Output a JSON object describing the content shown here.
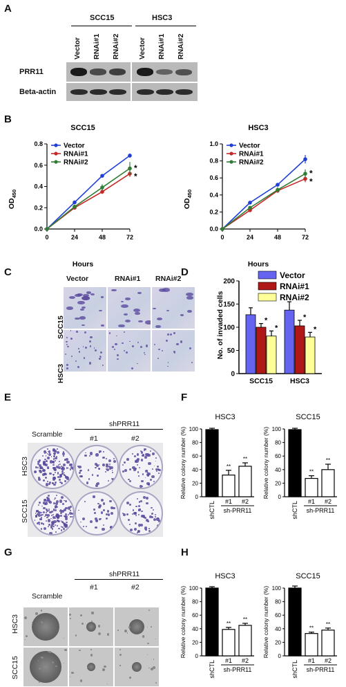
{
  "panels": {
    "A": "A",
    "B": "B",
    "C": "C",
    "D": "D",
    "E": "E",
    "F": "F",
    "G": "G",
    "H": "H"
  },
  "panelA": {
    "group_labels": [
      "SCC15",
      "HSC3"
    ],
    "lanes": [
      "Vector",
      "RNAi#1",
      "RNAi#2",
      "Vector",
      "RNAi#1",
      "RNAi#2"
    ],
    "row_labels": [
      "PRR11",
      "Beta-actin"
    ],
    "prr11_intensity": [
      0.95,
      0.55,
      0.65,
      0.95,
      0.35,
      0.5
    ],
    "actin_intensity": [
      0.8,
      0.8,
      0.8,
      0.8,
      0.8,
      0.8
    ]
  },
  "panelC": {
    "columns": [
      "Vector",
      "RNAi#1",
      "RNAi#2"
    ],
    "rows": [
      "SCC15",
      "HSC3"
    ],
    "cell_density": [
      [
        18,
        12,
        10
      ],
      [
        30,
        20,
        16
      ]
    ]
  },
  "panelE": {
    "scramble": "Scramble",
    "shPRR11": "shPRR11",
    "sub": [
      "#1",
      "#2"
    ],
    "rows": [
      "HSC3",
      "SCC15"
    ],
    "colony_density": [
      [
        1.0,
        0.35,
        0.45
      ],
      [
        1.0,
        0.25,
        0.4
      ]
    ]
  },
  "panelG": {
    "scramble": "Scramble",
    "shPRR11": "shPRR11",
    "sub": [
      "#1",
      "#2"
    ],
    "rows": [
      "HSC3",
      "SCC15"
    ]
  },
  "colors": {
    "vector_line": "#1f3fd6",
    "rnai1_line": "#c62828",
    "rnai2_line": "#2e7d32",
    "vector_bar": "#6464f0",
    "rnai1_bar": "#b01818",
    "rnai2_bar": "#ffff9a",
    "crystal_violet": "#5b4a9e"
  },
  "chart_data": [
    {
      "id": "B-left",
      "type": "line",
      "title": "SCC15",
      "xlabel": "Hours",
      "ylabel": "OD450",
      "x": [
        0,
        24,
        48,
        72
      ],
      "xlim": [
        0,
        72
      ],
      "ylim": [
        0,
        0.8
      ],
      "yticks": [
        "0.0",
        "0.2",
        "0.4",
        "0.6",
        "0.8"
      ],
      "xticks": [
        "0",
        "24",
        "48",
        "72"
      ],
      "series": [
        {
          "name": "Vector",
          "values": [
            0.0,
            0.25,
            0.5,
            0.69
          ],
          "err": [
            0,
            0.01,
            0.01,
            0.02
          ]
        },
        {
          "name": "RNAi#1",
          "values": [
            0.0,
            0.2,
            0.35,
            0.52
          ],
          "err": [
            0,
            0.01,
            0.02,
            0.03
          ]
        },
        {
          "name": "RNAi#2",
          "values": [
            0.0,
            0.21,
            0.39,
            0.57
          ],
          "err": [
            0,
            0.01,
            0.03,
            0.06
          ]
        }
      ],
      "annotations": [
        "*",
        "*"
      ]
    },
    {
      "id": "B-right",
      "type": "line",
      "title": "HSC3",
      "xlabel": "Hours",
      "ylabel": "OD450",
      "x": [
        0,
        24,
        48,
        72
      ],
      "xlim": [
        0,
        72
      ],
      "ylim": [
        0,
        1.0
      ],
      "yticks": [
        "0.0",
        "0.2",
        "0.4",
        "0.6",
        "0.8",
        "1.0"
      ],
      "xticks": [
        "0",
        "24",
        "48",
        "72"
      ],
      "series": [
        {
          "name": "Vector",
          "values": [
            0.0,
            0.31,
            0.52,
            0.82
          ],
          "err": [
            0,
            0.01,
            0.02,
            0.05
          ]
        },
        {
          "name": "RNAi#1",
          "values": [
            0.0,
            0.22,
            0.45,
            0.59
          ],
          "err": [
            0,
            0.01,
            0.02,
            0.04
          ]
        },
        {
          "name": "RNAi#2",
          "values": [
            0.0,
            0.25,
            0.46,
            0.65
          ],
          "err": [
            0,
            0.01,
            0.03,
            0.05
          ]
        }
      ],
      "annotations": [
        "*",
        "*"
      ]
    },
    {
      "id": "D",
      "type": "bar",
      "ylabel": "No. of invaded cells",
      "categories": [
        "SCC15",
        "HSC3"
      ],
      "ylim": [
        0,
        200
      ],
      "yticks": [
        "0",
        "50",
        "100",
        "150",
        "200"
      ],
      "series": [
        {
          "name": "Vector",
          "values": [
            127,
            137
          ],
          "err": [
            15,
            18
          ]
        },
        {
          "name": "RNAi#1",
          "values": [
            100,
            103
          ],
          "err": [
            8,
            12
          ]
        },
        {
          "name": "RNAi#2",
          "values": [
            81,
            79
          ],
          "err": [
            11,
            10
          ]
        }
      ],
      "annotations": [
        "*",
        "*",
        "*",
        "*"
      ]
    },
    {
      "id": "F-left",
      "type": "bar",
      "title": "HSC3",
      "ylabel": "Relative colony number (%)",
      "categories": [
        "shCTL",
        "#1",
        "#2"
      ],
      "group_label": "sh-PRR11",
      "ylim": [
        0,
        100
      ],
      "yticks": [
        "0",
        "20",
        "40",
        "60",
        "80",
        "100"
      ],
      "series": [
        {
          "values": [
            99,
            32,
            45
          ],
          "err": [
            2,
            7,
            5
          ]
        }
      ],
      "annotations": [
        "**",
        "**"
      ]
    },
    {
      "id": "F-right",
      "type": "bar",
      "title": "SCC15",
      "ylabel": "Relative colony number (%)",
      "categories": [
        "shCTL",
        "#1",
        "#2"
      ],
      "group_label": "sh-PRR11",
      "ylim": [
        0,
        100
      ],
      "yticks": [
        "0",
        "20",
        "40",
        "60",
        "80",
        "100"
      ],
      "series": [
        {
          "values": [
            99,
            27,
            40
          ],
          "err": [
            2,
            4,
            8
          ]
        }
      ],
      "annotations": [
        "**",
        "**"
      ]
    },
    {
      "id": "H-left",
      "type": "bar",
      "title": "HSC3",
      "ylabel": "Relative colony number (%)",
      "categories": [
        "shCTL",
        "#1",
        "#2"
      ],
      "group_label": "sh-PRR11",
      "ylim": [
        0,
        100
      ],
      "yticks": [
        "0",
        "20",
        "40",
        "60",
        "80",
        "100"
      ],
      "series": [
        {
          "values": [
            100,
            39,
            45
          ],
          "err": [
            2,
            3,
            3
          ]
        }
      ],
      "annotations": [
        "**",
        "**"
      ]
    },
    {
      "id": "H-right",
      "type": "bar",
      "title": "SCC15",
      "ylabel": "Relative colony number (%)",
      "categories": [
        "shCTL",
        "#1",
        "#2"
      ],
      "group_label": "sh-PRR11",
      "ylim": [
        0,
        100
      ],
      "yticks": [
        "0",
        "20",
        "40",
        "60",
        "80",
        "100"
      ],
      "series": [
        {
          "values": [
            100,
            33,
            38
          ],
          "err": [
            3,
            2,
            3
          ]
        }
      ],
      "annotations": [
        "**",
        "**"
      ]
    }
  ]
}
